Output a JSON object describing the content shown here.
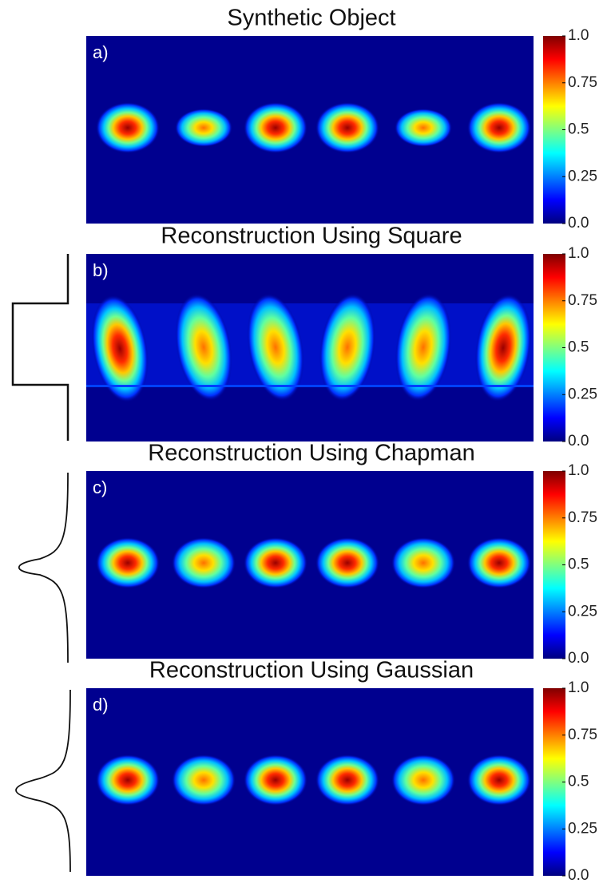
{
  "panels": [
    {
      "title": "Synthetic Object",
      "label": "a)",
      "colorbar": {
        "lim": [
          0,
          1
        ],
        "ticks": [
          {
            "value": 0,
            "label": "0.0"
          },
          0.25,
          0.5,
          0.75,
          {
            "value": 1,
            "label": "1.0"
          }
        ]
      }
    },
    {
      "title": "Reconstruction Using Square",
      "label": "b)",
      "colorbar": {
        "lim": [
          0,
          1
        ],
        "ticks": [
          {
            "value": 0,
            "label": "0.0"
          },
          0.25,
          0.5,
          0.75,
          {
            "value": 1,
            "label": "1.0"
          }
        ]
      }
    },
    {
      "title": "Reconstruction Using Chapman",
      "label": "c)",
      "colorbar": {
        "lim": [
          0,
          1
        ],
        "ticks": [
          {
            "value": 0,
            "label": "0.0"
          },
          0.25,
          0.5,
          0.75,
          {
            "value": 1,
            "label": "1.0"
          }
        ]
      }
    },
    {
      "title": "Reconstruction Using Gaussian",
      "label": "d)",
      "colorbar": {
        "lim": [
          0,
          1
        ],
        "ticks": [
          {
            "value": 0,
            "label": "0.0"
          },
          0.25,
          0.5,
          0.75,
          {
            "value": 1,
            "label": "1.0"
          }
        ]
      }
    }
  ]
}
